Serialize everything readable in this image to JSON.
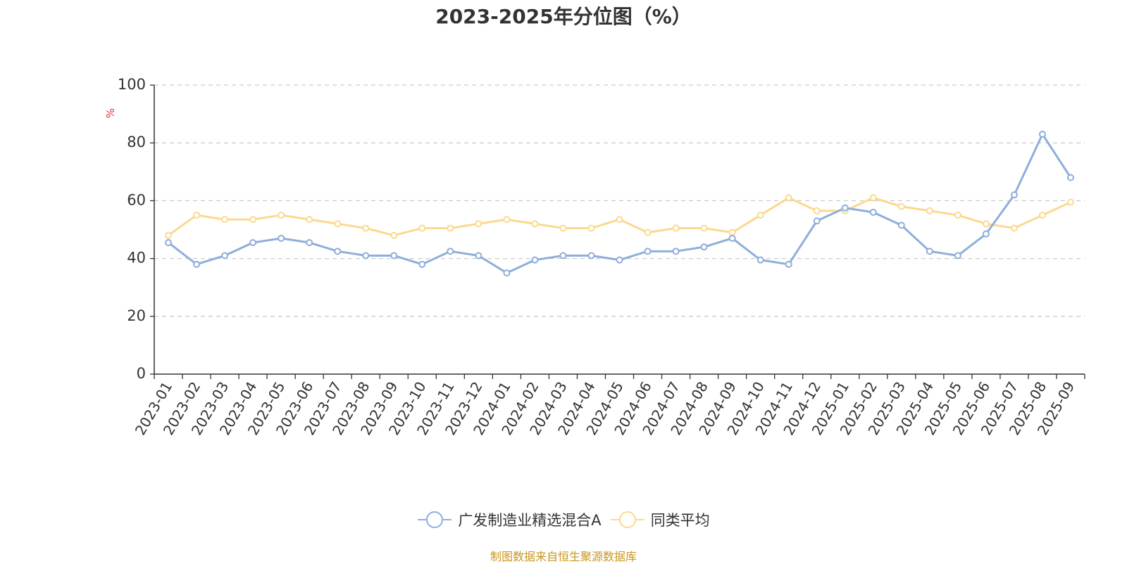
{
  "title": "2023-2025年分位图（%）",
  "source": "制图数据来自恒生聚源数据库",
  "chart_data": {
    "type": "line",
    "title": "2023-2025年分位图（%）",
    "ylabel": "%",
    "xlabel": "",
    "ylim": [
      0,
      100
    ],
    "yticks": [
      0,
      20,
      40,
      60,
      80,
      100
    ],
    "grid": true,
    "legend_position": "bottom-center",
    "categories": [
      "2023-01",
      "2023-02",
      "2023-03",
      "2023-04",
      "2023-05",
      "2023-06",
      "2023-07",
      "2023-08",
      "2023-09",
      "2023-10",
      "2023-11",
      "2023-12",
      "2024-01",
      "2024-02",
      "2024-03",
      "2024-04",
      "2024-05",
      "2024-06",
      "2024-07",
      "2024-08",
      "2024-09",
      "2024-10",
      "2024-11",
      "2024-12",
      "2025-01",
      "2025-02",
      "2025-03",
      "2025-04",
      "2025-05",
      "2025-06",
      "2025-07",
      "2025-08",
      "2025-09"
    ],
    "series": [
      {
        "name": "广发制造业精选混合A",
        "color": "#8eaedb",
        "values": [
          45.5,
          38,
          41,
          45.5,
          47,
          45.5,
          42.5,
          41,
          41,
          38,
          42.5,
          41,
          35,
          39.5,
          41,
          41,
          39.5,
          42.5,
          42.5,
          44,
          47,
          39.5,
          38,
          53,
          57.5,
          56,
          51.5,
          42.5,
          41,
          48.5,
          62,
          83,
          68
        ]
      },
      {
        "name": "同类平均",
        "color": "#fbd98e",
        "values": [
          48,
          55,
          53.5,
          53.5,
          55,
          53.5,
          52,
          50.5,
          48,
          50.5,
          50.5,
          52,
          53.5,
          52,
          50.5,
          50.5,
          53.5,
          49,
          50.5,
          50.5,
          49,
          55,
          61,
          56.5,
          56.5,
          61,
          58,
          56.5,
          55,
          52,
          50.5,
          55,
          59.5
        ]
      }
    ]
  }
}
